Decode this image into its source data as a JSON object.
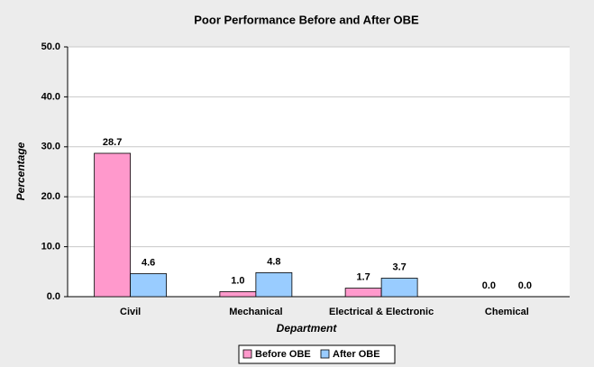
{
  "chart_data": {
    "type": "bar",
    "title": "Poor Performance Before and After OBE",
    "x_label": "Department",
    "y_label": "Percentage",
    "categories": [
      "Civil",
      "Mechanical",
      "Electrical & Electronic",
      "Chemical"
    ],
    "series": [
      {
        "name": "Before OBE",
        "color": "#ff99cc",
        "values": [
          28.7,
          1,
          1.7,
          0
        ],
        "value_labels": [
          "28.7",
          "1.0",
          "1.7",
          "0.0"
        ]
      },
      {
        "name": "After OBE",
        "color": "#99ccff",
        "values": [
          4.6,
          4.8,
          3.7,
          0
        ],
        "value_labels": [
          "4.6",
          "4.8",
          "3.7",
          "0.0"
        ]
      }
    ],
    "ylim": [
      0,
      50
    ],
    "yticks": [
      {
        "value": 0,
        "label": "0.0"
      },
      {
        "value": 10,
        "label": "10.0"
      },
      {
        "value": 20,
        "label": "20.0"
      },
      {
        "value": 30,
        "label": "30.0"
      },
      {
        "value": 40,
        "label": "40.0"
      },
      {
        "value": 50,
        "label": "50.0"
      }
    ],
    "grid": true,
    "legend": "bottom"
  }
}
